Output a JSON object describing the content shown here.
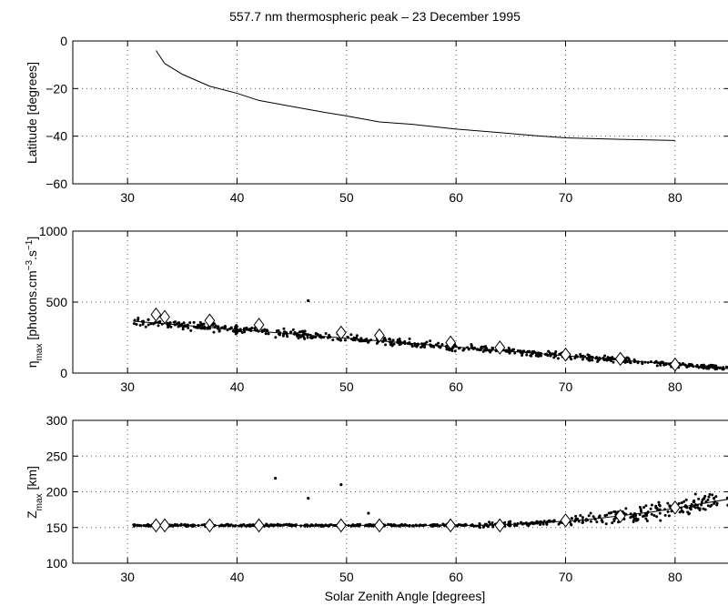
{
  "figure_title": "557.7 nm thermospheric peak – 23 December 1995",
  "chart_data": [
    {
      "type": "line",
      "xlim": [
        25,
        85
      ],
      "ylim": [
        -60,
        0
      ],
      "xticks": [
        30,
        40,
        50,
        60,
        70,
        80
      ],
      "yticks": [
        0,
        -20,
        -40,
        -60
      ],
      "ylabel": "Latitude [degrees]",
      "grid": true,
      "series": [
        {
          "style": "line",
          "x": [
            32.6,
            33.4,
            35,
            37.5,
            40,
            42,
            45,
            48,
            50,
            53,
            56,
            60,
            64,
            67,
            70,
            75,
            80
          ],
          "y": [
            -4,
            -9.5,
            -14,
            -19,
            -22,
            -25,
            -27.5,
            -30,
            -31.5,
            -34,
            -35,
            -37,
            -38.5,
            -39.7,
            -40.7,
            -41.3,
            -41.8
          ]
        }
      ]
    },
    {
      "type": "scatter",
      "xlim": [
        25,
        85
      ],
      "ylim": [
        0,
        1000
      ],
      "xticks": [
        30,
        40,
        50,
        60,
        70,
        80
      ],
      "yticks": [
        0,
        500,
        1000
      ],
      "ylabel_main": "η",
      "ylabel_sub": "max",
      "ylabel_units": " [photons.cm",
      "ylabel_exp1": "−3",
      "ylabel_mid": ".s",
      "ylabel_exp2": "−1",
      "ylabel_end": "]",
      "grid": true,
      "trend": {
        "x": [
          30.5,
          85
        ],
        "y": [
          365,
          30
        ]
      },
      "markers": {
        "symbol": "diamond",
        "x": [
          32.6,
          33.4,
          37.5,
          42,
          49.5,
          53,
          59.5,
          64,
          70,
          75,
          80
        ],
        "y": [
          412,
          395,
          370,
          340,
          285,
          265,
          215,
          180,
          130,
          100,
          60
        ]
      },
      "scatter": {
        "x_range": [
          30.5,
          85
        ],
        "n": 620,
        "noise": 22,
        "outliers": [
          [
            46.5,
            510
          ]
        ]
      }
    },
    {
      "type": "scatter",
      "xlim": [
        25,
        85
      ],
      "ylim": [
        100,
        300
      ],
      "xticks": [
        30,
        40,
        50,
        60,
        70,
        80
      ],
      "yticks": [
        100,
        150,
        200,
        250,
        300
      ],
      "ylabel_main": "Z",
      "ylabel_sub": "max",
      "ylabel_units": " [km]",
      "xlabel": "Solar Zenith Angle [degrees]",
      "grid": true,
      "trend": {
        "x": [
          30.5,
          62,
          66,
          72,
          78,
          85
        ],
        "y": [
          153,
          153,
          155,
          161,
          172,
          190
        ]
      },
      "markers": {
        "symbol": "diamond",
        "x": [
          32.6,
          33.4,
          37.5,
          42,
          49.5,
          53,
          59.5,
          64,
          70,
          75,
          80
        ],
        "y": [
          153,
          153,
          153,
          153,
          153,
          153,
          153,
          153,
          160,
          166,
          178
        ]
      },
      "scatter": {
        "x_range": [
          30.5,
          85
        ],
        "n": 620,
        "outliers": [
          [
            43.5,
            219
          ],
          [
            46.5,
            191
          ],
          [
            49.5,
            210
          ],
          [
            52,
            170
          ]
        ]
      }
    }
  ]
}
